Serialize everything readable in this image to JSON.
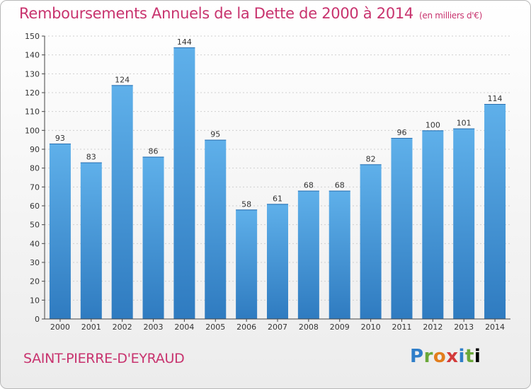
{
  "header": {
    "title": "Remboursements Annuels de la Dette de 2000 à 2014",
    "unit": "(en milliers d'€)"
  },
  "footer": {
    "commune": "SAINT-PIERRE-D'EYRAUD",
    "logo_letters": [
      "P",
      "r",
      "o",
      "x",
      "i",
      "t",
      "i"
    ]
  },
  "colors": {
    "title": "#c8336e",
    "bar_light": "#5fb0ea",
    "bar_dark": "#2f7bc0",
    "axis": "#444444",
    "grid": "#cfcfcf"
  },
  "chart_data": {
    "type": "bar",
    "title": "Remboursements Annuels de la Dette de 2000 à 2014",
    "subtitle": "(en milliers d'€)",
    "categories": [
      "2000",
      "2001",
      "2002",
      "2003",
      "2004",
      "2005",
      "2006",
      "2007",
      "2008",
      "2009",
      "2010",
      "2011",
      "2012",
      "2013",
      "2014"
    ],
    "values": [
      93,
      83,
      124,
      86,
      144,
      95,
      58,
      61,
      68,
      68,
      82,
      96,
      100,
      101,
      114
    ],
    "ylim": [
      0,
      150
    ],
    "yticks": [
      0,
      10,
      20,
      30,
      40,
      50,
      60,
      70,
      80,
      90,
      100,
      110,
      120,
      130,
      140,
      150
    ],
    "grid": true,
    "legend": "none"
  }
}
